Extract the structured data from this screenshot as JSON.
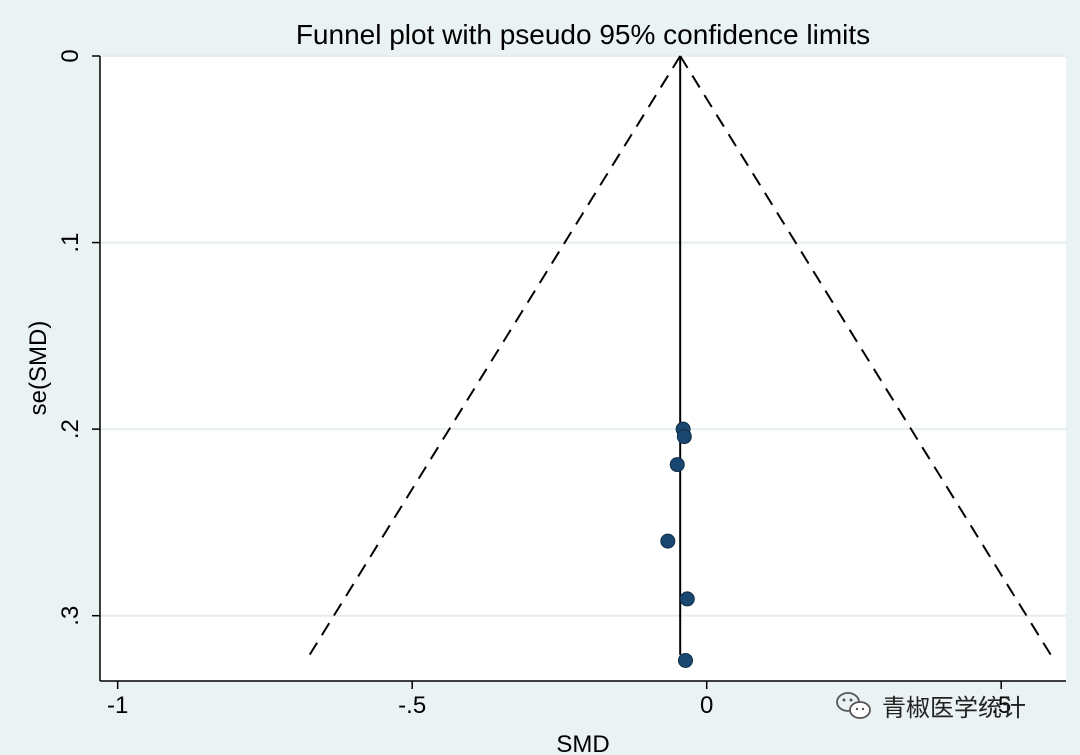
{
  "colors": {
    "page_bg": "#eaf2f3",
    "plot_bg": "#ffffff",
    "grid": "#e4eef0",
    "marker": "#1a476f",
    "line": "#000000"
  },
  "chart_data": {
    "type": "scatter",
    "title": "Funnel plot with pseudo 95% confidence limits",
    "xlabel": "SMD",
    "ylabel": "se(SMD)",
    "xlim": [
      -1.03,
      0.61
    ],
    "ylim": [
      0,
      0.335
    ],
    "y_reversed": true,
    "grid": "horizontal",
    "x_ticks": [
      {
        "value": -1,
        "label": "-1"
      },
      {
        "value": -0.5,
        "label": "-.5"
      },
      {
        "value": 0,
        "label": "0"
      },
      {
        "value": 0.5,
        "label": ".5"
      }
    ],
    "y_ticks": [
      {
        "value": 0,
        "label": "0"
      },
      {
        "value": 0.1,
        "label": ".1"
      },
      {
        "value": 0.2,
        "label": ".2"
      },
      {
        "value": 0.3,
        "label": ".3"
      }
    ],
    "pooled_estimate": -0.045,
    "ci_multiplier": 1.96,
    "ci_max_se": 0.321,
    "points": [
      {
        "x": -0.04,
        "y": 0.2
      },
      {
        "x": -0.038,
        "y": 0.204
      },
      {
        "x": -0.05,
        "y": 0.219
      },
      {
        "x": -0.066,
        "y": 0.26
      },
      {
        "x": -0.033,
        "y": 0.291
      },
      {
        "x": -0.036,
        "y": 0.324
      }
    ]
  },
  "watermark": {
    "text": "青椒医学统计",
    "icon": "wechat-icon"
  }
}
